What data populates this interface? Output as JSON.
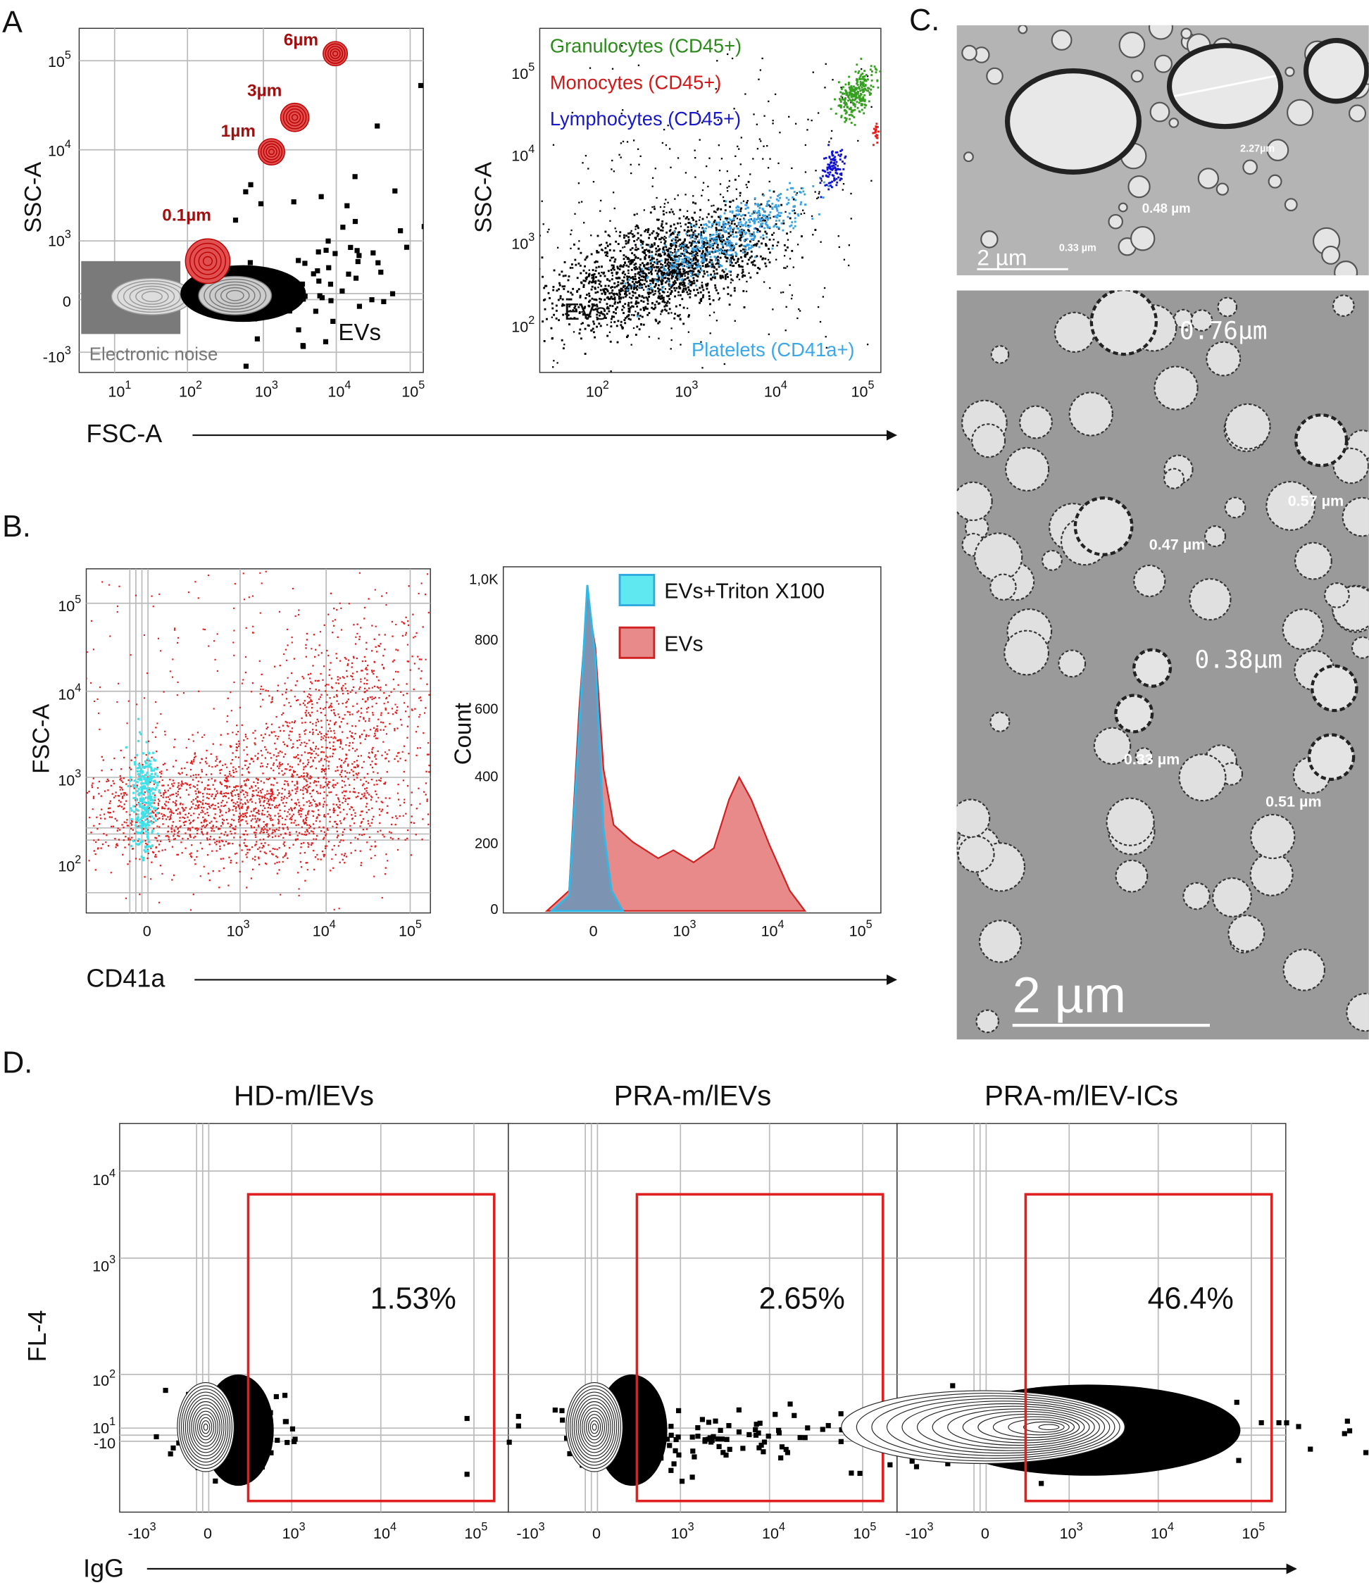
{
  "panel_a": {
    "label": "A",
    "x_label": "FSC-A",
    "left": {
      "y_label": "SSC-A",
      "yticks": [
        {
          "base": "10",
          "exp": "5"
        },
        {
          "base": "10",
          "exp": "4"
        },
        {
          "base": "10",
          "exp": "3"
        },
        {
          "base": "0"
        },
        {
          "base": "-10",
          "exp": "3"
        }
      ],
      "xticks": [
        {
          "base": "10",
          "exp": "1"
        },
        {
          "base": "10",
          "exp": "2"
        },
        {
          "base": "10",
          "exp": "3"
        },
        {
          "base": "10",
          "exp": "4"
        },
        {
          "base": "10",
          "exp": "5"
        }
      ],
      "sizes": [
        "6µm",
        "3µm",
        "1µm",
        "0.1µm"
      ],
      "ev_label": "EVs",
      "noise_label": "Electronic noise"
    },
    "right": {
      "y_label": "SSC-A",
      "yticks": [
        {
          "base": "10",
          "exp": "5"
        },
        {
          "base": "10",
          "exp": "4"
        },
        {
          "base": "10",
          "exp": "3"
        },
        {
          "base": "10",
          "exp": "2"
        }
      ],
      "xticks": [
        {
          "base": "10",
          "exp": "2"
        },
        {
          "base": "10",
          "exp": "3"
        },
        {
          "base": "10",
          "exp": "4"
        },
        {
          "base": "10",
          "exp": "5"
        }
      ],
      "populations": [
        "Granulocytes (CD45+)",
        "Monocytes (CD45+)",
        "Lymphocytes (CD45+)",
        "Platelets (CD41a+)"
      ],
      "ev_label": "EVs"
    }
  },
  "panel_b": {
    "label": "B.",
    "x_label": "CD41a",
    "left": {
      "y_label": "FSC-A",
      "yticks": [
        {
          "base": "10",
          "exp": "5"
        },
        {
          "base": "10",
          "exp": "4"
        },
        {
          "base": "10",
          "exp": "3"
        },
        {
          "base": "10",
          "exp": "2"
        }
      ],
      "xticks": [
        {
          "base": "0"
        },
        {
          "base": "10",
          "exp": "3"
        },
        {
          "base": "10",
          "exp": "4"
        },
        {
          "base": "10",
          "exp": "5"
        }
      ]
    },
    "right": {
      "y_label": "Count",
      "yticks": [
        {
          "base": "1,0K"
        },
        {
          "base": "800"
        },
        {
          "base": "600"
        },
        {
          "base": "400"
        },
        {
          "base": "200"
        },
        {
          "base": "0"
        }
      ],
      "xticks": [
        {
          "base": "0"
        },
        {
          "base": "10",
          "exp": "3"
        },
        {
          "base": "10",
          "exp": "4"
        },
        {
          "base": "10",
          "exp": "5"
        }
      ],
      "legend": [
        "EVs+Triton X100",
        "EVs"
      ]
    }
  },
  "panel_c": {
    "label": "C.",
    "top_measurements": [
      "2.27µm",
      "0.48 µm",
      "0.33 µm"
    ],
    "top_scale": "2 µm",
    "bottom_measurements": [
      "0.76µm",
      "0.57 µm",
      "0.47 µm",
      "0.38µm",
      "0.33 µm",
      "0.51 µm"
    ],
    "bottom_scale": "2 µm"
  },
  "panel_d": {
    "label": "D.",
    "y_label": "FL-4",
    "x_label": "IgG",
    "yticks": [
      {
        "base": "10",
        "exp": "4"
      },
      {
        "base": "10",
        "exp": "3"
      },
      {
        "base": "10",
        "exp": "2"
      },
      {
        "base": "10",
        "exp": "1"
      },
      {
        "base": "-10"
      }
    ],
    "xticks": [
      {
        "base": "-10",
        "exp": "3"
      },
      {
        "base": "0"
      },
      {
        "base": "10",
        "exp": "3"
      },
      {
        "base": "10",
        "exp": "4"
      },
      {
        "base": "10",
        "exp": "5"
      }
    ],
    "plots": [
      {
        "title": "HD-m/lEVs",
        "gate_percent": "1.53%"
      },
      {
        "title": "PRA-m/lEVs",
        "gate_percent": "2.65%"
      },
      {
        "title": "PRA-m/lEV-ICs",
        "gate_percent": "46.4%"
      }
    ]
  }
}
